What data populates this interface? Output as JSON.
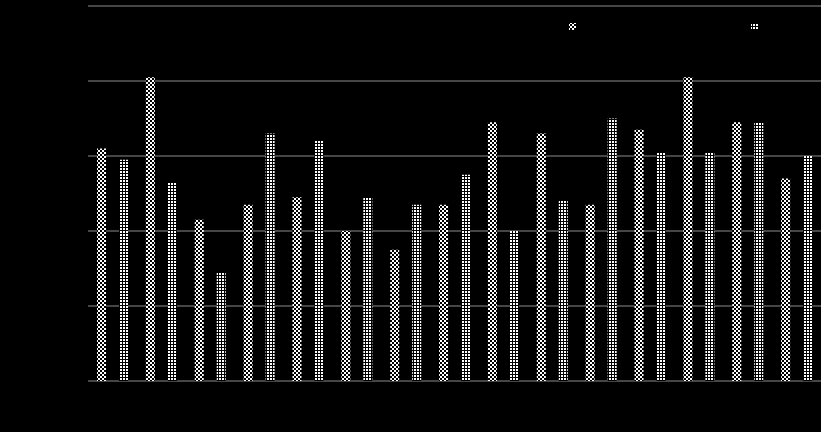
{
  "chart_data": {
    "type": "bar",
    "categories": [
      null,
      null,
      null,
      null,
      null,
      null,
      null,
      null,
      null,
      null,
      null,
      null,
      null,
      null,
      null
    ],
    "series": [
      {
        "color": "#ffffff",
        "values": [
          62,
          81,
          43,
          47,
          49,
          40,
          35,
          47,
          69,
          66,
          47,
          67,
          81,
          69,
          54
        ]
      },
      {
        "color": "#ffffff",
        "values": [
          59,
          53,
          29,
          66,
          64,
          49,
          47,
          55,
          40,
          48,
          70,
          61,
          61,
          69,
          60
        ]
      }
    ],
    "ylim": [
      0,
      100
    ],
    "yticks": [
      0,
      20,
      40,
      60,
      80,
      100
    ],
    "grid": true,
    "legend": "top-right"
  }
}
